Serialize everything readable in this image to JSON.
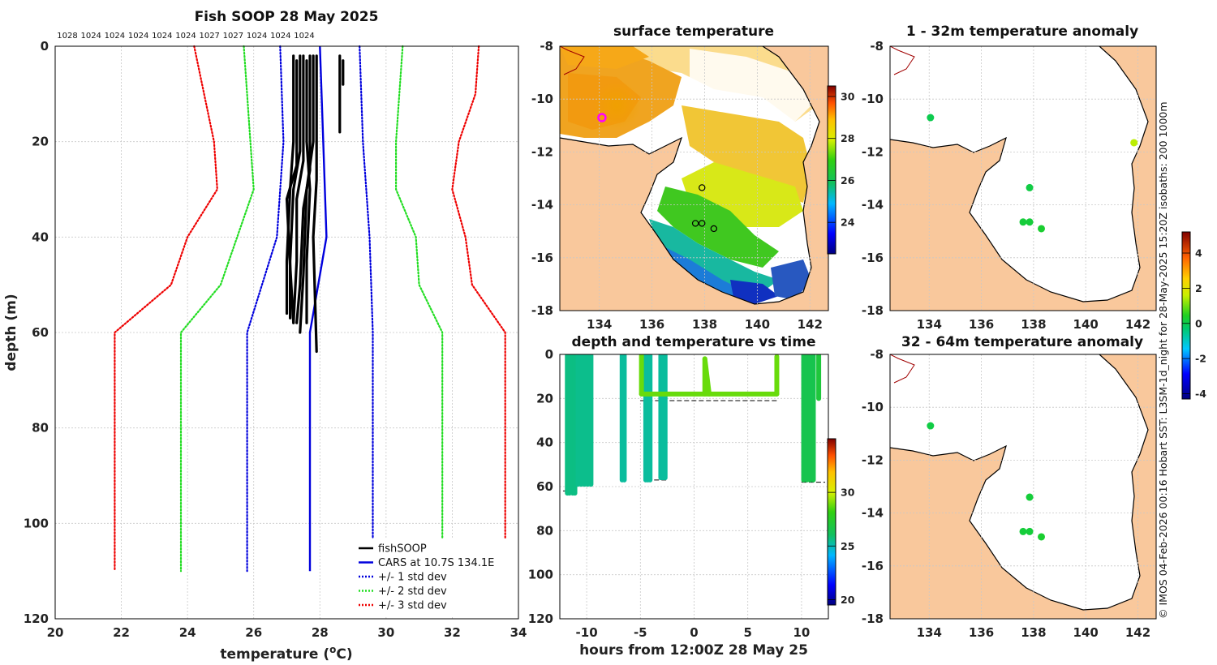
{
  "chart_data": [
    {
      "type": "line",
      "panel": "profile",
      "title": "Fish SOOP 28 May 2025",
      "xlabel": "temperature (",
      "xlabel_unit": "o",
      "xlabel_end": "C)",
      "ylabel": "depth (m)",
      "xlim": [
        20,
        34
      ],
      "ylim": [
        0,
        120
      ],
      "xticks": [
        "20",
        "22",
        "24",
        "26",
        "28",
        "30",
        "32",
        "34"
      ],
      "yticks": [
        "0",
        "20",
        "40",
        "60",
        "80",
        "100",
        "120"
      ],
      "pressure_labels": [
        "1028",
        "1024",
        "1024",
        "1024",
        "1024",
        "1024",
        "1027",
        "1027",
        "1024",
        "1024",
        "1024"
      ],
      "legend": [
        {
          "label": "fishSOOP",
          "color": "#000000",
          "style": "solid"
        },
        {
          "label": "CARS at 10.7S 134.1E",
          "color": "#0000dd",
          "style": "solid"
        },
        {
          "label": "+/- 1 std dev",
          "color": "#0000dd",
          "style": "dotted"
        },
        {
          "label": "+/- 2 std dev",
          "color": "#22dd22",
          "style": "dotted"
        },
        {
          "label": "+/- 3 std dev",
          "color": "#ee0000",
          "style": "dotted"
        }
      ],
      "series": [
        {
          "name": "CARS mean",
          "color": "#0000dd",
          "style": "solid",
          "points": [
            [
              28.0,
              0
            ],
            [
              28.1,
              20
            ],
            [
              28.2,
              40
            ],
            [
              27.7,
              60
            ],
            [
              27.7,
              110
            ]
          ]
        },
        {
          "name": "-1 std",
          "color": "#0000dd",
          "style": "dotted",
          "points": [
            [
              26.8,
              0
            ],
            [
              26.9,
              20
            ],
            [
              26.7,
              40
            ],
            [
              25.8,
              60
            ],
            [
              25.8,
              110
            ]
          ]
        },
        {
          "name": "+1 std",
          "color": "#0000dd",
          "style": "dotted",
          "points": [
            [
              29.2,
              0
            ],
            [
              29.3,
              20
            ],
            [
              29.5,
              40
            ],
            [
              29.6,
              60
            ],
            [
              29.6,
              110
            ]
          ]
        },
        {
          "name": "-2 std",
          "color": "#22dd22",
          "style": "dotted",
          "points": [
            [
              25.7,
              0
            ],
            [
              25.9,
              20
            ],
            [
              26.0,
              30
            ],
            [
              25.0,
              50
            ],
            [
              23.8,
              60
            ],
            [
              23.8,
              110
            ]
          ]
        },
        {
          "name": "+2 std",
          "color": "#22dd22",
          "style": "dotted",
          "points": [
            [
              30.5,
              0
            ],
            [
              30.3,
              20
            ],
            [
              30.3,
              30
            ],
            [
              30.9,
              40
            ],
            [
              31.0,
              50
            ],
            [
              31.7,
              60
            ],
            [
              31.7,
              110
            ]
          ]
        },
        {
          "name": "-3 std",
          "color": "#ee0000",
          "style": "dotted",
          "points": [
            [
              24.2,
              0
            ],
            [
              24.8,
              20
            ],
            [
              24.9,
              30
            ],
            [
              24.0,
              40
            ],
            [
              23.5,
              50
            ],
            [
              21.8,
              60
            ],
            [
              21.8,
              110
            ]
          ]
        },
        {
          "name": "+3 std",
          "color": "#ee0000",
          "style": "dotted",
          "points": [
            [
              32.8,
              0
            ],
            [
              32.7,
              10
            ],
            [
              32.2,
              20
            ],
            [
              32.0,
              30
            ],
            [
              32.4,
              40
            ],
            [
              32.6,
              50
            ],
            [
              33.6,
              60
            ],
            [
              33.6,
              110
            ]
          ]
        }
      ],
      "profiles": [
        [
          [
            27.2,
            2
          ],
          [
            27.2,
            20
          ],
          [
            27.1,
            30
          ],
          [
            27.0,
            45
          ],
          [
            27.0,
            56
          ]
        ],
        [
          [
            27.4,
            2
          ],
          [
            27.4,
            22
          ],
          [
            27.2,
            30
          ],
          [
            27.1,
            45
          ],
          [
            27.1,
            57
          ]
        ],
        [
          [
            27.5,
            2
          ],
          [
            27.5,
            24
          ],
          [
            27.3,
            32
          ],
          [
            27.3,
            45
          ],
          [
            27.2,
            58
          ]
        ],
        [
          [
            27.7,
            2
          ],
          [
            27.7,
            26
          ],
          [
            27.5,
            34
          ],
          [
            27.4,
            50
          ],
          [
            27.3,
            58
          ]
        ],
        [
          [
            27.8,
            2
          ],
          [
            27.8,
            20
          ],
          [
            27.6,
            30
          ],
          [
            27.5,
            48
          ],
          [
            27.4,
            60
          ]
        ],
        [
          [
            27.6,
            3
          ],
          [
            27.6,
            20
          ],
          [
            27.7,
            30
          ],
          [
            27.6,
            45
          ],
          [
            27.6,
            58
          ]
        ],
        [
          [
            27.9,
            2
          ],
          [
            27.9,
            28
          ],
          [
            27.8,
            40
          ],
          [
            27.9,
            64
          ]
        ],
        [
          [
            27.3,
            3
          ],
          [
            27.3,
            25
          ],
          [
            27.0,
            32
          ],
          [
            27.1,
            46
          ],
          [
            27.2,
            58
          ]
        ],
        [
          [
            28.6,
            2
          ],
          [
            28.6,
            18
          ]
        ],
        [
          [
            28.7,
            3
          ],
          [
            28.7,
            8
          ]
        ]
      ]
    },
    {
      "type": "heatmap",
      "panel": "sst_map",
      "title": "surface temperature",
      "xlim": [
        132.5,
        142.7
      ],
      "ylim": [
        -18,
        -8
      ],
      "xticks": [
        "134",
        "136",
        "138",
        "140",
        "142"
      ],
      "yticks": [
        "-8",
        "-10",
        "-12",
        "-14",
        "-16",
        "-18"
      ],
      "colorbar": {
        "min": 22.5,
        "max": 30.5,
        "ticks": [
          "24",
          "26",
          "28",
          "30"
        ]
      },
      "stations": [
        {
          "lon": 134.1,
          "lat": -10.7,
          "highlight": true
        },
        {
          "lon": 137.9,
          "lat": -13.35
        },
        {
          "lon": 137.65,
          "lat": -14.7
        },
        {
          "lon": 137.9,
          "lat": -14.7
        },
        {
          "lon": 138.35,
          "lat": -14.9
        }
      ]
    },
    {
      "type": "scatter",
      "panel": "depth_time",
      "title": "depth and temperature vs time",
      "xlabel": "hours from 12:00Z 28 May 25",
      "xlim": [
        -12.5,
        12.5
      ],
      "ylim": [
        0,
        120
      ],
      "xticks": [
        "-10",
        "-5",
        "0",
        "5",
        "10"
      ],
      "yticks": [
        "0",
        "20",
        "40",
        "60",
        "80",
        "100",
        "120"
      ],
      "colorbar": {
        "min": 19.5,
        "max": 35,
        "ticks": [
          "20",
          "25",
          "30"
        ]
      },
      "tracks": [
        {
          "x": [
            -11.8,
            -11.6,
            -11.3,
            -11.1
          ],
          "depth_max": 63,
          "temp": 25.6
        },
        {
          "x": [
            -10.8,
            -10.5,
            -10.2,
            -9.9,
            -9.6
          ],
          "depth_max": 59,
          "temp": 25.5
        },
        {
          "x": [
            -6.7,
            -6.5
          ],
          "depth_max": 57,
          "temp": 25.3
        },
        {
          "x": [
            -4.5,
            -4.3,
            -4.1
          ],
          "depth_max": 57,
          "temp": 25.3
        },
        {
          "x": [
            -3.1,
            -2.9,
            -2.7
          ],
          "depth_max": 56,
          "temp": 25.3
        },
        {
          "x": [
            10.2,
            10.5,
            10.8,
            11.1
          ],
          "depth_max": 57,
          "temp": 26.5
        },
        {
          "x": [
            11.6
          ],
          "depth_max": 20,
          "temp": 27.0
        }
      ],
      "surface_run": {
        "x0": -4.9,
        "x1": 7.7,
        "depth": 18,
        "temp": 28.8
      },
      "bottom_dashes": [
        {
          "x0": -12.2,
          "x1": -11.0,
          "depth": 62
        },
        {
          "x0": -10.9,
          "x1": -9.5,
          "depth": 59
        },
        {
          "x0": -5.0,
          "x1": 7.8,
          "depth": 21
        },
        {
          "x0": -4.4,
          "x1": -2.6,
          "depth": 57
        },
        {
          "x0": 10.0,
          "x1": 12.2,
          "depth": 58
        }
      ]
    },
    {
      "type": "scatter",
      "panel": "anomaly_1_32",
      "title": "1 - 32m temperature anomaly",
      "xlim": [
        132.5,
        142.7
      ],
      "ylim": [
        -18,
        -8
      ],
      "xticks": [
        "134",
        "136",
        "138",
        "140",
        "142"
      ],
      "yticks": [
        "-8",
        "-10",
        "-12",
        "-14",
        "-16",
        "-18"
      ],
      "points": [
        {
          "lon": 134.05,
          "lat": -10.7,
          "anom": 0.0
        },
        {
          "lon": 137.85,
          "lat": -13.35,
          "anom": 0.1
        },
        {
          "lon": 137.6,
          "lat": -14.65,
          "anom": 0.2
        },
        {
          "lon": 137.85,
          "lat": -14.65,
          "anom": 0.2
        },
        {
          "lon": 138.3,
          "lat": -14.9,
          "anom": 0.3
        },
        {
          "lon": 141.85,
          "lat": -11.65,
          "anom": 1.5
        }
      ]
    },
    {
      "type": "scatter",
      "panel": "anomaly_32_64",
      "title": "32 - 64m temperature anomaly",
      "xlim": [
        132.5,
        142.7
      ],
      "ylim": [
        -18,
        -8
      ],
      "xticks": [
        "134",
        "136",
        "138",
        "140",
        "142"
      ],
      "yticks": [
        "-8",
        "-10",
        "-12",
        "-14",
        "-16",
        "-18"
      ],
      "points": [
        {
          "lon": 134.05,
          "lat": -10.7,
          "anom": 0.1
        },
        {
          "lon": 137.85,
          "lat": -13.4,
          "anom": 0.2
        },
        {
          "lon": 137.6,
          "lat": -14.7,
          "anom": 0.2
        },
        {
          "lon": 137.85,
          "lat": -14.7,
          "anom": 0.2
        },
        {
          "lon": 138.3,
          "lat": -14.9,
          "anom": 0.3
        }
      ]
    },
    {
      "type": "heatmap",
      "panel": "anomaly_colorbar",
      "colorbar": {
        "min": -4.3,
        "max": 5.2,
        "ticks": [
          "4",
          "2",
          "0",
          "-2",
          "-4"
        ]
      }
    }
  ],
  "credit": "© IMOS 04-Feb-2026 00:16 Hobart SST: L3SM-1d_night for 28-May-2025 15:20Z isobaths: 200  1000m"
}
